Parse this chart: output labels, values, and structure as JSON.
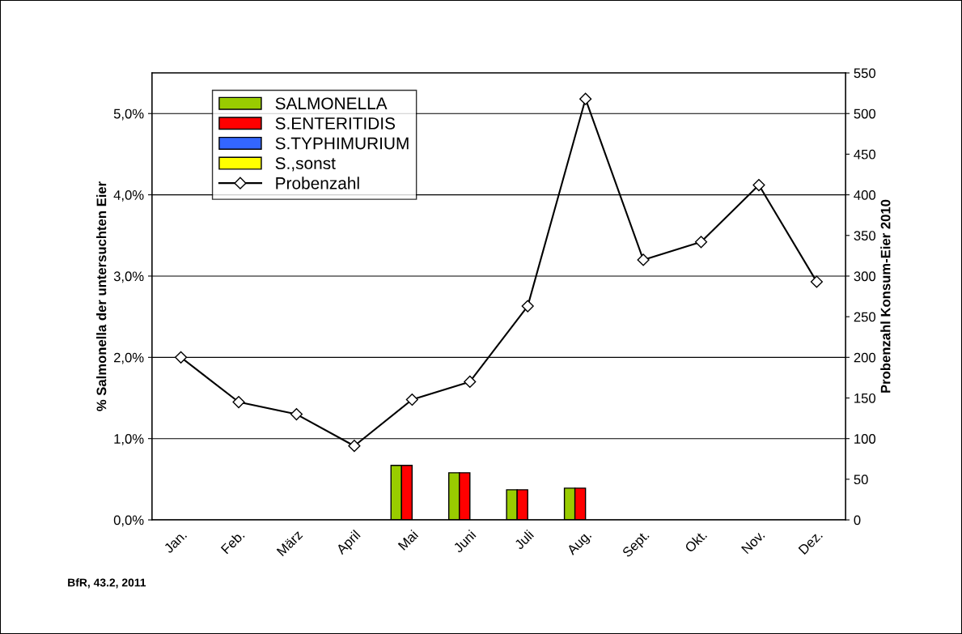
{
  "chart_data": {
    "type": "bar",
    "categories": [
      "Jan.",
      "Feb.",
      "März",
      "April",
      "Mai",
      "Juni",
      "Juli",
      "Aug.",
      "Sept.",
      "Okt.",
      "Nov.",
      "Dez."
    ],
    "ylabel": "% Salmonella der untersuchten Eier",
    "y2label": "Probenzahl Konsum-Eier 2010",
    "series": [
      {
        "name": "SALMONELLA",
        "color": "#99cc00",
        "values": [
          null,
          null,
          null,
          null,
          0.67,
          0.58,
          0.37,
          0.39,
          null,
          null,
          null,
          null
        ]
      },
      {
        "name": "S.ENTERITIDIS",
        "color": "#ff0000",
        "values": [
          null,
          null,
          null,
          null,
          0.67,
          0.58,
          0.37,
          0.39,
          null,
          null,
          null,
          null
        ]
      },
      {
        "name": "S.TYPHIMURIUM",
        "color": "#3366ff",
        "values": [
          null,
          null,
          null,
          null,
          null,
          null,
          null,
          null,
          null,
          null,
          null,
          null
        ]
      },
      {
        "name": "S.,sonst",
        "color": "#ffff00",
        "values": [
          null,
          null,
          null,
          null,
          null,
          null,
          null,
          null,
          null,
          null,
          null,
          null
        ]
      },
      {
        "name": "Probenzahl",
        "type": "line",
        "axis": "y2",
        "color": "#000000",
        "marker": "diamond",
        "values": [
          200,
          145,
          130,
          91,
          148,
          170,
          263,
          518,
          320,
          342,
          412,
          293
        ]
      }
    ],
    "ylim": [
      0,
      5.5
    ],
    "yticks": [
      {
        "value": 0,
        "label": "0,0%"
      },
      {
        "value": 1,
        "label": "1,0%"
      },
      {
        "value": 2,
        "label": "2,0%"
      },
      {
        "value": 3,
        "label": "3,0%"
      },
      {
        "value": 4,
        "label": "4,0%"
      },
      {
        "value": 5,
        "label": "5,0%"
      }
    ],
    "y2lim": [
      0,
      550
    ],
    "y2ticks": [
      0,
      50,
      100,
      150,
      200,
      250,
      300,
      350,
      400,
      450,
      500,
      550
    ],
    "grid": "y",
    "legend": "top left",
    "annotations": [
      "BfR, 43.2, 2011"
    ]
  }
}
